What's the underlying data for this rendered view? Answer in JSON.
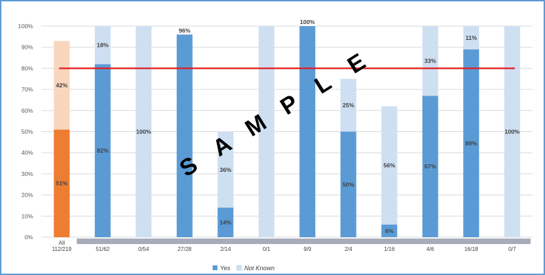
{
  "chart_data": {
    "type": "bar",
    "stacked": true,
    "categories": [
      [
        "All",
        "112/219"
      ],
      [
        "51/62"
      ],
      [
        "0/54"
      ],
      [
        "27/28"
      ],
      [
        "2/14"
      ],
      [
        "0/1"
      ],
      [
        "9/9"
      ],
      [
        "2/4"
      ],
      [
        "1/16"
      ],
      [
        "4/6"
      ],
      [
        "16/18"
      ],
      [
        "0/7"
      ]
    ],
    "series": [
      {
        "name": "Yes",
        "color": "#5b9bd5",
        "highlight_color": "#ed7d31",
        "values": [
          51,
          82,
          0,
          96,
          14,
          0,
          100,
          50,
          6,
          67,
          89,
          0
        ],
        "labels": [
          "51%",
          "82%",
          "",
          "96%",
          "14%",
          "",
          "100%",
          "50%",
          "6%",
          "67%",
          "89%",
          ""
        ]
      },
      {
        "name": "Not Known",
        "color": "#c5daf0",
        "highlight_color": "#f7cbac",
        "values": [
          42,
          18,
          100,
          0,
          36,
          100,
          0,
          25,
          56,
          33,
          11,
          100
        ],
        "labels": [
          "42%",
          "18%",
          "100%",
          "",
          "36%",
          "",
          "",
          "25%",
          "56%",
          "33%",
          "11%",
          "100%"
        ]
      }
    ],
    "ylim": [
      0,
      100
    ],
    "yticks": [
      "0%",
      "10%",
      "20%",
      "30%",
      "40%",
      "50%",
      "60%",
      "70%",
      "80%",
      "90%",
      "100%"
    ],
    "target_line": {
      "value": 80,
      "color": "#e31a1c"
    },
    "grid": true,
    "legend_position": "bottom",
    "watermark": "S A M P L E"
  }
}
